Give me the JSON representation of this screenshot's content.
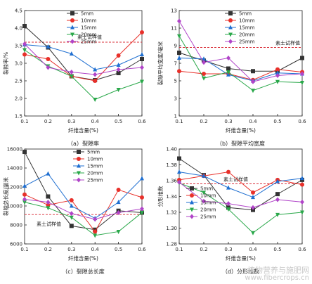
{
  "chart_data": [
    {
      "type": "line",
      "caption": "（a）裂隙率",
      "ylabel": "裂隙率/%",
      "xlabel": "纤维含量(%)",
      "x": [
        0.1,
        0.2,
        0.3,
        0.4,
        0.5,
        0.6
      ],
      "xlim": [
        0.1,
        0.6
      ],
      "ylim": [
        1.5,
        4.5
      ],
      "xticks": [
        "0.1",
        "0.2",
        "0.3",
        "0.4",
        "0.5",
        "0.6"
      ],
      "yticks": [
        "1.5",
        "2.0",
        "2.5",
        "3.0",
        "3.5",
        "4.0",
        "4.5"
      ],
      "reference": {
        "label": "素土试样值",
        "value": 3.6
      },
      "legend_position": "top-right",
      "series": [
        {
          "name": "5mm",
          "color": "#333333",
          "marker": "square",
          "values": [
            4.06,
            3.45,
            2.63,
            2.52,
            2.72,
            3.12
          ]
        },
        {
          "name": "10mm",
          "color": "#e8302a",
          "marker": "circle",
          "values": [
            3.25,
            3.12,
            2.63,
            2.5,
            3.22,
            3.88
          ]
        },
        {
          "name": "15mm",
          "color": "#1f6fd1",
          "marker": "triangle",
          "values": [
            3.53,
            3.47,
            3.27,
            2.82,
            2.95,
            3.25
          ]
        },
        {
          "name": "20mm",
          "color": "#2aa84a",
          "marker": "triangle-down",
          "values": [
            3.38,
            2.92,
            2.63,
            1.97,
            2.25,
            2.48
          ]
        },
        {
          "name": "25mm",
          "color": "#b044c8",
          "marker": "diamond",
          "values": [
            3.55,
            2.88,
            2.75,
            2.68,
            2.82,
            2.88
          ]
        }
      ]
    },
    {
      "type": "line",
      "caption": "（b）裂隙平均宽度",
      "ylabel": "裂隙平均宽度/毫米",
      "xlabel": "纤维含量(%)",
      "x": [
        0.1,
        0.2,
        0.3,
        0.4,
        0.5,
        0.6
      ],
      "xlim": [
        0.1,
        0.6
      ],
      "ylim": [
        1,
        13
      ],
      "xticks": [
        "0.1",
        "0.2",
        "0.3",
        "0.4",
        "0.5",
        "0.6"
      ],
      "yticks": [
        "1",
        "3",
        "5",
        "7",
        "9",
        "11",
        "13"
      ],
      "reference": {
        "label": "素土试样值",
        "value": 8.8
      },
      "legend_position": "top-right",
      "series": [
        {
          "name": "5mm",
          "color": "#333333",
          "marker": "square",
          "values": [
            8.2,
            7.3,
            6.4,
            6.1,
            6.1,
            7.6
          ]
        },
        {
          "name": "10mm",
          "color": "#e8302a",
          "marker": "circle",
          "values": [
            6.1,
            5.8,
            5.8,
            5.1,
            6.3,
            6.0
          ]
        },
        {
          "name": "15mm",
          "color": "#1f6fd1",
          "marker": "triangle",
          "values": [
            7.6,
            7.5,
            5.7,
            5.0,
            5.9,
            5.8
          ]
        },
        {
          "name": "20mm",
          "color": "#2aa84a",
          "marker": "triangle-down",
          "values": [
            10.1,
            5.3,
            6.0,
            3.9,
            4.9,
            4.8
          ]
        },
        {
          "name": "25mm",
          "color": "#b044c8",
          "marker": "diamond",
          "values": [
            11.8,
            7.1,
            7.6,
            4.9,
            5.6,
            5.8
          ]
        }
      ]
    },
    {
      "type": "line",
      "caption": "（c）裂隙总长度",
      "ylabel": "裂隙总长度/毫米",
      "xlabel": "纤维含量(%)",
      "x": [
        0.1,
        0.2,
        0.3,
        0.4,
        0.5,
        0.6
      ],
      "xlim": [
        0.1,
        0.6
      ],
      "ylim": [
        6000,
        16000
      ],
      "xticks": [
        "0.1",
        "0.2",
        "0.3",
        "0.4",
        "0.5",
        "0.6"
      ],
      "yticks": [
        "6000",
        "8000",
        "10000",
        "12000",
        "14000",
        "16000"
      ],
      "reference": {
        "label": "素土试样值",
        "value": 9100
      },
      "legend_position": "top-right",
      "series": [
        {
          "name": "5mm",
          "color": "#333333",
          "marker": "square",
          "values": [
            15700,
            11000,
            7900,
            7500,
            9500,
            9300
          ]
        },
        {
          "name": "10mm",
          "color": "#e8302a",
          "marker": "circle",
          "values": [
            11200,
            10100,
            10600,
            7300,
            11700,
            10900
          ]
        },
        {
          "name": "15mm",
          "color": "#1f6fd1",
          "marker": "triangle",
          "values": [
            12100,
            13400,
            10000,
            8700,
            10400,
            12900
          ]
        },
        {
          "name": "20mm",
          "color": "#2aa84a",
          "marker": "triangle-down",
          "values": [
            10400,
            9800,
            8800,
            6900,
            7300,
            9300
          ]
        },
        {
          "name": "25mm",
          "color": "#b044c8",
          "marker": "diamond",
          "values": [
            10700,
            10400,
            9200,
            8600,
            9300,
            9700
          ]
        }
      ]
    },
    {
      "type": "line",
      "caption": "（d）分形维数",
      "ylabel": "分形维数",
      "xlabel": "纤维含量(%)",
      "x": [
        0.1,
        0.2,
        0.3,
        0.4,
        0.5,
        0.6
      ],
      "xlim": [
        0.1,
        0.6
      ],
      "ylim": [
        1.28,
        1.4
      ],
      "xticks": [
        "0.1",
        "0.2",
        "0.3",
        "0.4",
        "0.5",
        "0.6"
      ],
      "yticks": [
        "1.28",
        "1.30",
        "1.32",
        "1.34",
        "1.36",
        "1.38",
        "1.40"
      ],
      "reference": {
        "label": "素土试样值",
        "value": 1.356
      },
      "legend_position": "bottom-left",
      "series": [
        {
          "name": "5mm",
          "color": "#333333",
          "marker": "square",
          "values": [
            1.388,
            1.367,
            1.326,
            1.323,
            1.343,
            1.361
          ]
        },
        {
          "name": "10mm",
          "color": "#e8302a",
          "marker": "circle",
          "values": [
            1.361,
            1.366,
            1.371,
            1.345,
            1.361,
            1.355
          ]
        },
        {
          "name": "15mm",
          "color": "#1f6fd1",
          "marker": "triangle",
          "values": [
            1.371,
            1.366,
            1.351,
            1.339,
            1.359,
            1.363
          ]
        },
        {
          "name": "20mm",
          "color": "#2aa84a",
          "marker": "triangle-down",
          "values": [
            1.357,
            1.345,
            1.324,
            1.294,
            1.317,
            1.32
          ]
        },
        {
          "name": "25mm",
          "color": "#b044c8",
          "marker": "diamond",
          "values": [
            1.358,
            1.334,
            1.331,
            1.326,
            1.336,
            1.333
          ]
        }
      ]
    }
  ],
  "watermark": {
    "line1": "植物营养与施肥网",
    "line2": "www.fibercrops.cn"
  }
}
